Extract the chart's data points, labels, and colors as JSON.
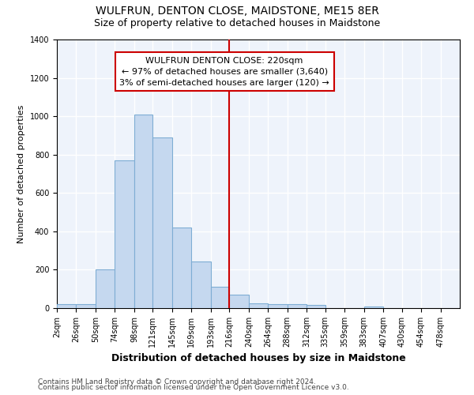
{
  "title": "WULFRUN, DENTON CLOSE, MAIDSTONE, ME15 8ER",
  "subtitle": "Size of property relative to detached houses in Maidstone",
  "xlabel": "Distribution of detached houses by size in Maidstone",
  "ylabel": "Number of detached properties",
  "footnote1": "Contains HM Land Registry data © Crown copyright and database right 2024.",
  "footnote2": "Contains public sector information licensed under the Open Government Licence v3.0.",
  "property_label": "WULFRUN DENTON CLOSE: 220sqm",
  "annotation_line1": "← 97% of detached houses are smaller (3,640)",
  "annotation_line2": "3% of semi-detached houses are larger (120) →",
  "bar_left_edges": [
    2,
    26,
    50,
    74,
    98,
    121,
    145,
    169,
    193,
    216,
    240,
    264,
    288,
    312,
    335,
    359,
    383,
    407,
    430,
    454,
    478
  ],
  "bar_heights": [
    20,
    20,
    200,
    770,
    1010,
    890,
    420,
    245,
    110,
    70,
    25,
    20,
    20,
    15,
    0,
    0,
    10,
    0,
    0,
    0,
    0
  ],
  "bar_widths": [
    24,
    24,
    24,
    24,
    23,
    24,
    24,
    24,
    23,
    24,
    24,
    24,
    24,
    23,
    24,
    24,
    24,
    23,
    24,
    24,
    24
  ],
  "bar_color": "#c5d8ef",
  "bar_edge_color": "#7eadd4",
  "vline_color": "#cc0000",
  "vline_x": 216,
  "annotation_box_edge_color": "#cc0000",
  "background_color": "#eef3fb",
  "grid_color": "#ffffff",
  "ylim": [
    0,
    1400
  ],
  "xlim": [
    2,
    502
  ],
  "xtick_labels": [
    "2sqm",
    "26sqm",
    "50sqm",
    "74sqm",
    "98sqm",
    "121sqm",
    "145sqm",
    "169sqm",
    "193sqm",
    "216sqm",
    "240sqm",
    "264sqm",
    "288sqm",
    "312sqm",
    "335sqm",
    "359sqm",
    "383sqm",
    "407sqm",
    "430sqm",
    "454sqm",
    "478sqm"
  ],
  "xtick_positions": [
    2,
    26,
    50,
    74,
    98,
    121,
    145,
    169,
    193,
    216,
    240,
    264,
    288,
    312,
    335,
    359,
    383,
    407,
    430,
    454,
    478
  ],
  "ytick_positions": [
    0,
    200,
    400,
    600,
    800,
    1000,
    1200,
    1400
  ],
  "title_fontsize": 10,
  "subtitle_fontsize": 9,
  "xlabel_fontsize": 9,
  "ylabel_fontsize": 8,
  "tick_fontsize": 7,
  "annotation_fontsize": 8,
  "footnote_fontsize": 6.5
}
